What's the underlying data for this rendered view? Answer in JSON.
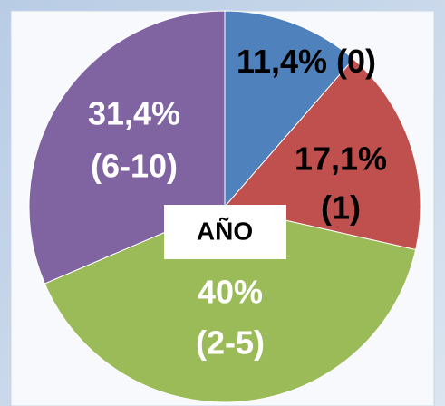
{
  "chart_data": {
    "type": "pie",
    "center_label": "AÑO",
    "categories": [
      "(0)",
      "(1)",
      "(2-5)",
      "(6-10)"
    ],
    "values": [
      11.4,
      17.1,
      40,
      31.4
    ],
    "value_labels": [
      "11,4%",
      "17,1%",
      "40%",
      "31,4%"
    ],
    "colors": [
      "#4f81bd",
      "#c0504d",
      "#9bbb59",
      "#8064a2"
    ],
    "label_colors": [
      "#000000",
      "#000000",
      "#ffffff",
      "#ffffff"
    ]
  }
}
